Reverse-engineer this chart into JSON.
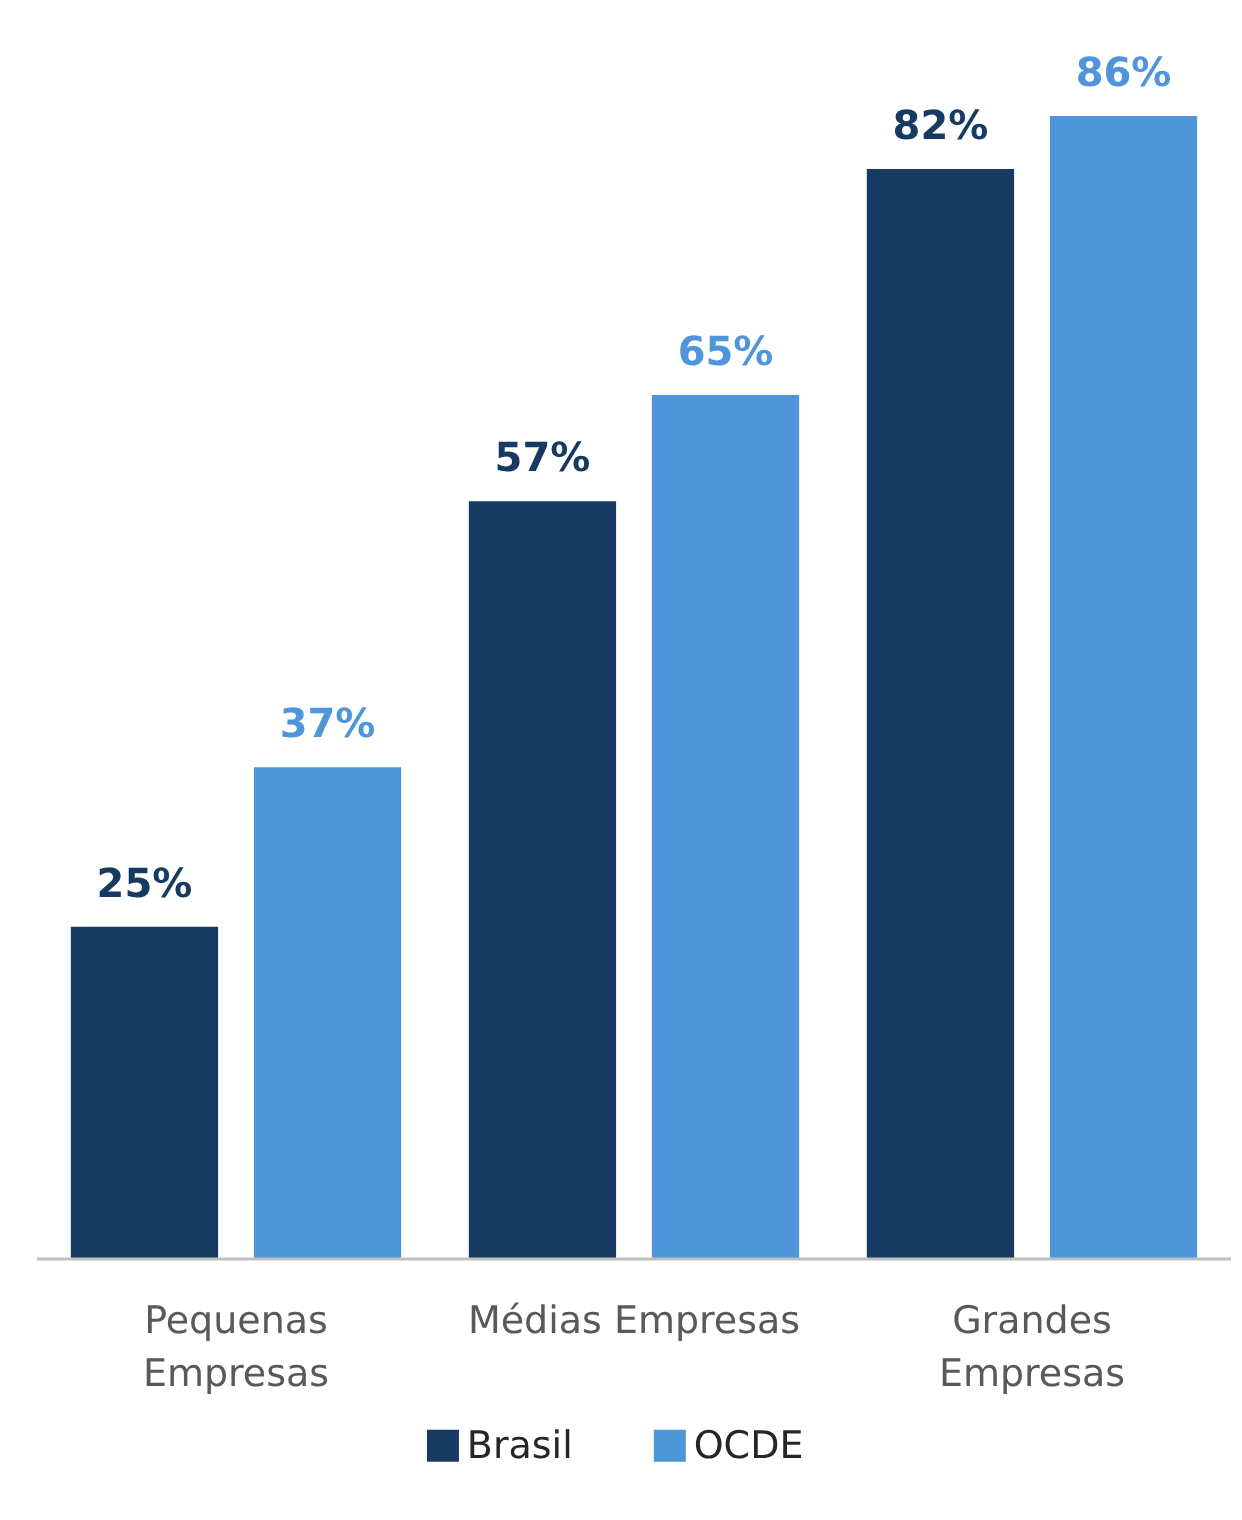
{
  "chart_data": {
    "type": "bar",
    "categories": [
      "Pequenas\nEmpresas",
      "Médias Empresas",
      "Grandes\nEmpresas"
    ],
    "series": [
      {
        "name": "Brasil",
        "color": "#173a63",
        "values": [
          25,
          57,
          82
        ],
        "value_labels": [
          "25%",
          "57%",
          "82%"
        ]
      },
      {
        "name": "OCDE",
        "color": "#4e95d9",
        "values": [
          37,
          65,
          86
        ],
        "value_labels": [
          "37%",
          "65%",
          "86%"
        ]
      }
    ],
    "grid": false,
    "legend": "bottom"
  }
}
